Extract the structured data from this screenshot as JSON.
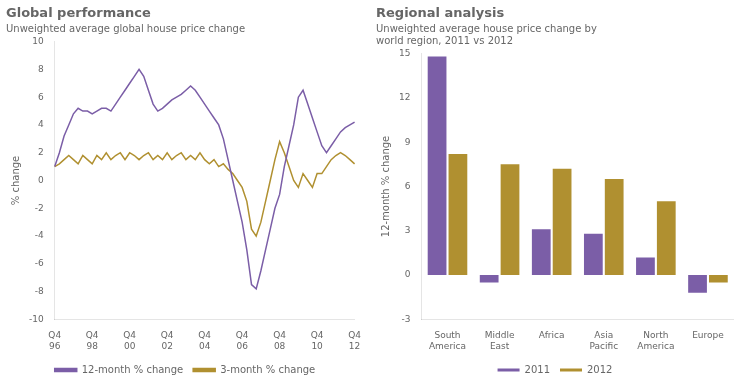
{
  "chart_data": [
    {
      "type": "line",
      "title": "Global performance",
      "subtitle": "Unweighted average global house price change",
      "y_label": "% change",
      "categories": [
        "Q4\n96",
        null,
        null,
        null,
        null,
        null,
        null,
        null,
        "Q4\n98",
        null,
        null,
        null,
        null,
        null,
        null,
        null,
        "Q4\n00",
        null,
        null,
        null,
        null,
        null,
        null,
        null,
        "Q4\n02",
        null,
        null,
        null,
        null,
        null,
        null,
        null,
        "Q4\n04",
        null,
        null,
        null,
        null,
        null,
        null,
        null,
        "Q4\n06",
        null,
        null,
        null,
        null,
        null,
        null,
        null,
        "Q4\n08",
        null,
        null,
        null,
        null,
        null,
        null,
        null,
        "Q4\n10",
        null,
        null,
        null,
        null,
        null,
        null,
        null,
        "Q4\n12"
      ],
      "series": [
        {
          "name": "12-month % change",
          "color": "#7B5EA7",
          "values": [
            1.0,
            2.0,
            3.2,
            4.0,
            4.8,
            5.2,
            5.0,
            5.0,
            4.8,
            5.0,
            5.2,
            5.2,
            5.0,
            5.5,
            6.0,
            6.5,
            7.0,
            7.5,
            8.0,
            7.5,
            6.5,
            5.5,
            5.0,
            5.2,
            5.5,
            5.8,
            6.0,
            6.2,
            6.5,
            6.8,
            6.5,
            6.0,
            5.5,
            5.0,
            4.5,
            4.0,
            3.0,
            1.5,
            0.0,
            -1.5,
            -3.0,
            -5.0,
            -7.5,
            -7.8,
            -6.5,
            -5.0,
            -3.5,
            -2.0,
            -1.0,
            1.0,
            2.5,
            4.0,
            6.0,
            6.5,
            5.5,
            4.5,
            3.5,
            2.5,
            2.0,
            2.5,
            3.0,
            3.5,
            3.8,
            4.0,
            4.2
          ]
        },
        {
          "name": "3-month % change",
          "color": "#B09030",
          "values": [
            1.0,
            1.2,
            1.5,
            1.8,
            1.5,
            1.2,
            1.8,
            1.5,
            1.2,
            1.8,
            1.5,
            2.0,
            1.5,
            1.8,
            2.0,
            1.5,
            2.0,
            1.8,
            1.5,
            1.8,
            2.0,
            1.5,
            1.8,
            1.5,
            2.0,
            1.5,
            1.8,
            2.0,
            1.5,
            1.8,
            1.5,
            2.0,
            1.5,
            1.2,
            1.5,
            1.0,
            1.2,
            0.8,
            0.5,
            0.0,
            -0.5,
            -1.5,
            -3.5,
            -4.0,
            -3.0,
            -1.5,
            0.0,
            1.5,
            2.8,
            2.0,
            1.0,
            0.0,
            -0.5,
            0.5,
            0.0,
            -0.5,
            0.5,
            0.5,
            1.0,
            1.5,
            1.8,
            2.0,
            1.8,
            1.5,
            1.2
          ]
        }
      ],
      "ylim": [
        -10,
        10
      ],
      "yticks": [
        -10,
        -8,
        -6,
        -4,
        -2,
        0,
        2,
        4,
        6,
        8,
        10
      ],
      "grid": false,
      "legend": "bottom"
    },
    {
      "type": "bar",
      "title": "Regional analysis",
      "subtitle": "Unweighted average house price change by\nworld region, 2011 vs 2012",
      "y_label": "12-month % change",
      "categories": [
        "South\nAmerica",
        "Middle\nEast",
        "Africa",
        "Asia\nPacific",
        "North\nAmerica",
        "Europe"
      ],
      "series": [
        {
          "name": "2011",
          "color": "#7B5EA7",
          "values": [
            14.8,
            -0.5,
            3.1,
            2.8,
            1.2,
            -1.2
          ]
        },
        {
          "name": "2012",
          "color": "#B09030",
          "values": [
            8.2,
            7.5,
            7.2,
            6.5,
            5.0,
            -0.5
          ]
        }
      ],
      "ylim": [
        -3,
        15
      ],
      "yticks": [
        -3,
        0,
        3,
        6,
        9,
        12,
        15
      ],
      "grid": false,
      "legend": "bottom"
    }
  ]
}
